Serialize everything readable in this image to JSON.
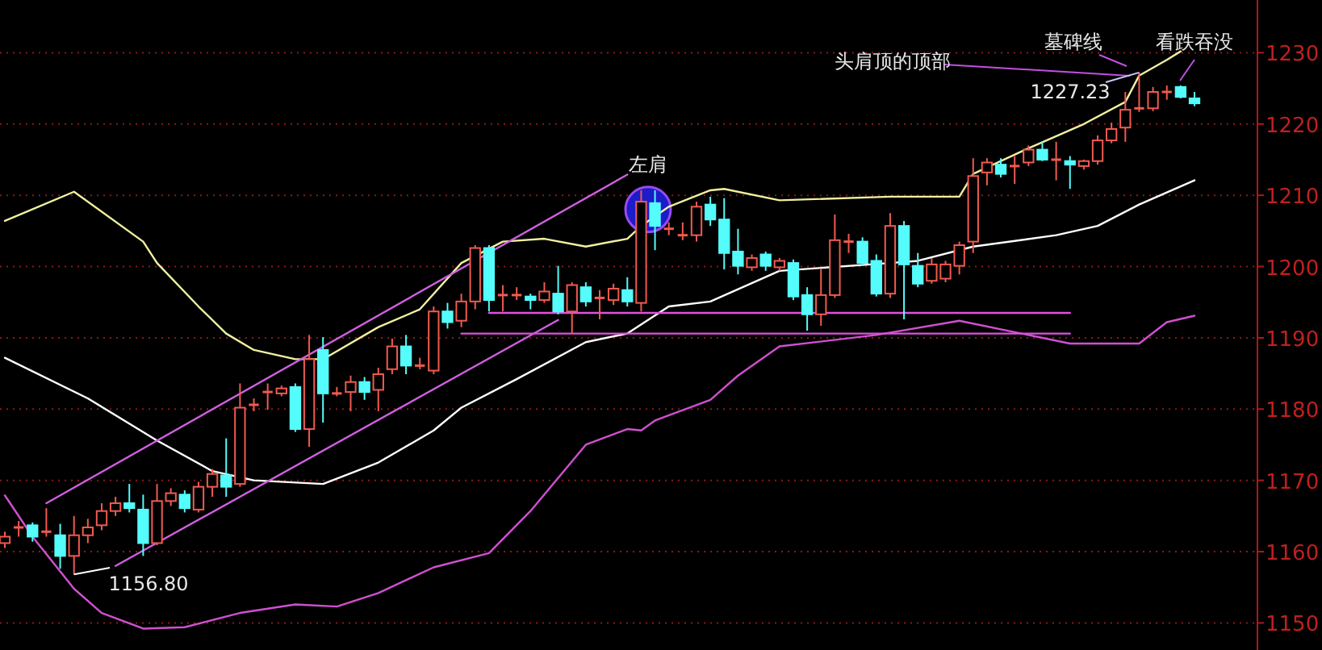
{
  "chart_data": {
    "type": "candlestick",
    "categories": [
      null,
      null,
      null,
      null,
      null,
      null,
      null,
      null,
      null,
      null,
      null,
      null,
      null,
      null,
      null,
      null,
      null,
      null,
      null,
      null,
      null,
      null,
      null,
      null,
      null,
      null,
      null,
      null,
      null,
      null,
      null,
      null,
      null,
      null,
      null,
      null,
      null,
      null,
      null,
      null,
      null,
      null,
      null,
      null,
      null,
      null,
      null,
      null,
      null,
      null,
      null,
      null,
      null,
      null,
      null,
      null,
      null,
      null,
      null,
      null,
      null,
      null,
      null,
      null,
      null,
      null,
      null,
      null,
      null,
      null,
      null,
      null,
      null,
      null,
      null,
      null,
      null,
      null,
      null,
      null,
      null,
      null,
      null,
      null,
      null,
      null,
      null
    ],
    "ohlc": [
      [
        1161.2,
        1162.8,
        1160.5,
        1162.1
      ],
      [
        1163.4,
        1164.3,
        1162.1,
        1163.4
      ],
      [
        1163.7,
        1164.1,
        1161.4,
        1162.1
      ],
      [
        1162.8,
        1166.1,
        1162.1,
        1162.8
      ],
      [
        1162.3,
        1163.9,
        1157.6,
        1159.4
      ],
      [
        1159.4,
        1165.0,
        1156.8,
        1162.3
      ],
      [
        1162.3,
        1164.6,
        1161.2,
        1163.4
      ],
      [
        1163.7,
        1166.8,
        1163.0,
        1165.7
      ],
      [
        1165.7,
        1167.7,
        1165.0,
        1166.8
      ],
      [
        1166.8,
        1169.5,
        1165.5,
        1166.1
      ],
      [
        1165.9,
        1168.0,
        1159.4,
        1161.2
      ],
      [
        1161.2,
        1169.5,
        1160.9,
        1167.1
      ],
      [
        1167.1,
        1168.9,
        1166.4,
        1168.2
      ],
      [
        1168.0,
        1168.6,
        1165.5,
        1166.1
      ],
      [
        1165.9,
        1169.8,
        1165.5,
        1169.1
      ],
      [
        1169.1,
        1171.6,
        1167.7,
        1170.9
      ],
      [
        1170.7,
        1175.9,
        1167.7,
        1169.1
      ],
      [
        1169.5,
        1183.6,
        1169.1,
        1180.2
      ],
      [
        1180.6,
        1181.5,
        1179.7,
        1180.6
      ],
      [
        1182.4,
        1183.6,
        1179.9,
        1182.4
      ],
      [
        1182.2,
        1183.3,
        1181.8,
        1182.9
      ],
      [
        1183.1,
        1183.6,
        1176.8,
        1177.2
      ],
      [
        1177.2,
        1190.4,
        1174.7,
        1187.0
      ],
      [
        1188.3,
        1190.1,
        1178.1,
        1182.2
      ],
      [
        1182.2,
        1183.1,
        1181.8,
        1182.2
      ],
      [
        1182.4,
        1184.7,
        1179.7,
        1183.8
      ],
      [
        1183.8,
        1184.5,
        1181.3,
        1182.4
      ],
      [
        1182.7,
        1185.8,
        1179.7,
        1184.9
      ],
      [
        1185.6,
        1189.9,
        1184.9,
        1188.8
      ],
      [
        1188.8,
        1190.4,
        1184.9,
        1186.1
      ],
      [
        1186.1,
        1187.2,
        1185.6,
        1186.1
      ],
      [
        1185.4,
        1194.4,
        1184.9,
        1193.7
      ],
      [
        1193.7,
        1194.9,
        1191.3,
        1192.2
      ],
      [
        1192.4,
        1196.2,
        1191.5,
        1195.1
      ],
      [
        1195.1,
        1203.0,
        1194.0,
        1202.6
      ],
      [
        1202.6,
        1203.0,
        1193.7,
        1195.3
      ],
      [
        1196.0,
        1197.4,
        1193.7,
        1196.0
      ],
      [
        1196.0,
        1197.1,
        1195.3,
        1196.0
      ],
      [
        1195.8,
        1196.2,
        1194.0,
        1195.3
      ],
      [
        1195.3,
        1197.8,
        1194.9,
        1196.5
      ],
      [
        1196.2,
        1200.1,
        1193.3,
        1193.7
      ],
      [
        1193.7,
        1197.8,
        1190.6,
        1197.4
      ],
      [
        1197.1,
        1197.8,
        1194.4,
        1195.1
      ],
      [
        1195.6,
        1196.7,
        1192.6,
        1195.6
      ],
      [
        1195.3,
        1197.6,
        1194.6,
        1196.9
      ],
      [
        1196.7,
        1198.5,
        1194.4,
        1195.1
      ],
      [
        1194.9,
        1210.7,
        1193.7,
        1209.1
      ],
      [
        1208.9,
        1210.7,
        1202.3,
        1205.7
      ],
      [
        1205.3,
        1206.2,
        1204.4,
        1205.3
      ],
      [
        1204.4,
        1206.2,
        1203.7,
        1204.4
      ],
      [
        1204.4,
        1209.1,
        1203.5,
        1208.4
      ],
      [
        1208.7,
        1209.8,
        1205.7,
        1206.6
      ],
      [
        1206.6,
        1209.6,
        1199.6,
        1201.9
      ],
      [
        1202.1,
        1205.3,
        1198.9,
        1200.1
      ],
      [
        1199.9,
        1201.7,
        1199.4,
        1201.2
      ],
      [
        1201.7,
        1202.1,
        1199.4,
        1200.1
      ],
      [
        1199.9,
        1201.2,
        1199.4,
        1200.8
      ],
      [
        1200.5,
        1201.0,
        1195.3,
        1195.8
      ],
      [
        1196.0,
        1197.1,
        1191.0,
        1193.3
      ],
      [
        1193.3,
        1199.6,
        1191.7,
        1196.0
      ],
      [
        1196.0,
        1207.3,
        1195.6,
        1203.7
      ],
      [
        1203.5,
        1204.6,
        1201.9,
        1203.5
      ],
      [
        1203.5,
        1204.1,
        1200.1,
        1200.5
      ],
      [
        1200.8,
        1201.7,
        1195.8,
        1196.2
      ],
      [
        1196.2,
        1207.5,
        1195.6,
        1205.7
      ],
      [
        1205.7,
        1206.4,
        1192.6,
        1200.3
      ],
      [
        1200.1,
        1201.9,
        1197.1,
        1197.6
      ],
      [
        1198.0,
        1201.2,
        1197.6,
        1200.3
      ],
      [
        1198.3,
        1200.8,
        1197.8,
        1200.3
      ],
      [
        1200.1,
        1203.5,
        1198.9,
        1203.0
      ],
      [
        1203.5,
        1215.2,
        1201.9,
        1212.7
      ],
      [
        1213.2,
        1215.2,
        1211.4,
        1214.6
      ],
      [
        1214.3,
        1215.2,
        1212.5,
        1213.0
      ],
      [
        1214.1,
        1215.5,
        1211.6,
        1214.1
      ],
      [
        1214.6,
        1217.0,
        1214.1,
        1216.4
      ],
      [
        1216.4,
        1217.5,
        1214.8,
        1215.0
      ],
      [
        1215.0,
        1217.5,
        1212.1,
        1215.0
      ],
      [
        1214.8,
        1215.5,
        1210.9,
        1214.3
      ],
      [
        1214.1,
        1215.0,
        1213.6,
        1214.8
      ],
      [
        1214.8,
        1218.4,
        1214.3,
        1217.7
      ],
      [
        1217.7,
        1220.2,
        1217.3,
        1219.3
      ],
      [
        1219.5,
        1224.5,
        1217.5,
        1222.0
      ],
      [
        1222.2,
        1227.23,
        1221.7,
        1222.2
      ],
      [
        1222.2,
        1225.2,
        1221.8,
        1224.5
      ],
      [
        1224.5,
        1225.4,
        1223.4,
        1224.5
      ],
      [
        1225.2,
        1225.4,
        1223.6,
        1223.8
      ],
      [
        1223.6,
        1224.5,
        1222.5,
        1222.9
      ]
    ],
    "series": [
      {
        "type": "line",
        "color": "#f0f0a0",
        "values": [
          1206.4,
          null,
          null,
          null,
          null,
          1210.5,
          null,
          null,
          null,
          null,
          1203.5,
          1200.5,
          null,
          null,
          1194.4,
          null,
          1190.6,
          null,
          1188.3,
          null,
          null,
          1187.0,
          null,
          1187.0,
          null,
          null,
          null,
          1191.5,
          null,
          null,
          1194.0,
          null,
          null,
          1200.5,
          null,
          null,
          1203.5,
          null,
          null,
          1203.9,
          null,
          null,
          1202.8,
          null,
          null,
          1203.9,
          1205.7,
          null,
          1208.4,
          null,
          null,
          1210.7,
          1210.9,
          null,
          null,
          null,
          1209.3,
          null,
          null,
          null,
          null,
          null,
          null,
          null,
          1209.8,
          null,
          null,
          null,
          null,
          1209.8,
          1213.0,
          null,
          null,
          null,
          1216.6,
          null,
          null,
          null,
          1220.0,
          null,
          null,
          1223.1,
          1226.8,
          null,
          1229.0,
          1230.2,
          null
        ]
      },
      {
        "type": "line",
        "color": "#ffffff",
        "values": [
          1187.2,
          null,
          null,
          null,
          null,
          null,
          1181.5,
          null,
          null,
          null,
          null,
          1175.6,
          null,
          null,
          null,
          1171.3,
          null,
          null,
          1170.0,
          null,
          null,
          null,
          null,
          1169.5,
          null,
          null,
          null,
          1172.5,
          null,
          null,
          null,
          1177.0,
          null,
          1180.2,
          null,
          null,
          null,
          1184.2,
          null,
          null,
          null,
          null,
          1189.4,
          null,
          null,
          1190.6,
          null,
          null,
          1194.4,
          null,
          null,
          1195.1,
          null,
          null,
          null,
          null,
          1199.4,
          null,
          null,
          null,
          null,
          null,
          null,
          null,
          1200.5,
          null,
          1200.8,
          null,
          null,
          null,
          1202.8,
          null,
          null,
          null,
          null,
          null,
          1204.4,
          null,
          null,
          1205.7,
          null,
          null,
          1208.7,
          null,
          null,
          null,
          1212.1
        ]
      },
      {
        "type": "line",
        "color": "#d050d0",
        "values": [
          1167.9,
          null,
          1162.1,
          null,
          null,
          1154.8,
          null,
          1151.4,
          null,
          null,
          1149.2,
          null,
          null,
          1149.4,
          null,
          null,
          null,
          1151.4,
          null,
          null,
          null,
          1152.6,
          null,
          null,
          1152.3,
          null,
          null,
          1154.2,
          null,
          null,
          null,
          1157.8,
          null,
          null,
          null,
          1159.8,
          null,
          null,
          1165.7,
          null,
          null,
          null,
          1175.0,
          null,
          null,
          1177.2,
          1177.0,
          1178.4,
          null,
          null,
          null,
          1181.3,
          null,
          1184.7,
          null,
          null,
          1188.8,
          null,
          null,
          null,
          null,
          null,
          null,
          1190.4,
          null,
          null,
          null,
          null,
          null,
          1192.4,
          null,
          null,
          null,
          1190.8,
          null,
          null,
          null,
          1189.2,
          null,
          null,
          null,
          null,
          1189.2,
          null,
          1192.2,
          null,
          1193.1
        ]
      },
      {
        "type": "line",
        "color": "#d060e0",
        "values": [
          null,
          null,
          null,
          1166.8,
          null,
          null,
          null,
          null,
          null,
          null,
          null,
          null,
          null,
          null,
          null,
          null,
          null,
          null,
          null,
          null,
          null,
          null,
          null,
          null,
          null,
          null,
          null,
          null,
          null,
          null,
          null,
          null,
          null,
          null,
          null,
          null,
          null,
          null,
          null,
          null,
          null,
          null,
          null,
          null,
          null,
          1212.9,
          null,
          null,
          null,
          null,
          null,
          null,
          null,
          null,
          null,
          null,
          null,
          null,
          null,
          null,
          null,
          null,
          null,
          null,
          null,
          null,
          null,
          null,
          null,
          null,
          null,
          null,
          null,
          null,
          null,
          null,
          null,
          null,
          null,
          null,
          null,
          null,
          null,
          null,
          null,
          null,
          null
        ]
      },
      {
        "type": "line",
        "color": "#d060e0",
        "values": [
          null,
          null,
          null,
          null,
          null,
          null,
          null,
          null,
          1158.0,
          null,
          null,
          null,
          null,
          null,
          null,
          null,
          null,
          null,
          null,
          null,
          null,
          null,
          null,
          null,
          null,
          null,
          null,
          null,
          null,
          null,
          null,
          null,
          null,
          null,
          null,
          null,
          null,
          null,
          null,
          null,
          1192.5,
          null,
          null,
          null,
          null,
          null,
          null,
          null,
          null,
          null,
          null,
          null,
          null,
          null,
          null,
          null,
          null,
          null,
          null,
          null,
          null,
          null,
          null,
          null,
          null,
          null,
          null,
          null,
          null,
          null,
          null,
          null,
          null,
          null,
          null,
          null,
          null,
          null,
          null,
          null,
          null,
          null,
          null,
          null,
          null,
          null,
          null
        ]
      },
      {
        "type": "line",
        "color": "#e050e0",
        "values": [
          null,
          null,
          null,
          null,
          null,
          null,
          null,
          null,
          null,
          null,
          null,
          null,
          null,
          null,
          null,
          null,
          null,
          null,
          null,
          null,
          null,
          null,
          null,
          null,
          null,
          null,
          null,
          null,
          null,
          null,
          null,
          null,
          null,
          null,
          null,
          1193.5,
          null,
          null,
          null,
          null,
          null,
          null,
          null,
          null,
          null,
          null,
          null,
          null,
          null,
          null,
          null,
          null,
          null,
          null,
          null,
          null,
          null,
          null,
          null,
          null,
          null,
          null,
          null,
          null,
          null,
          null,
          null,
          null,
          null,
          null,
          null,
          null,
          null,
          null,
          null,
          null,
          null,
          1193.5,
          null,
          null,
          null,
          null,
          null,
          null,
          null,
          null,
          null
        ]
      },
      {
        "type": "line",
        "color": "#e050e0",
        "values": [
          null,
          null,
          null,
          null,
          null,
          null,
          null,
          null,
          null,
          null,
          null,
          null,
          null,
          null,
          null,
          null,
          null,
          null,
          null,
          null,
          null,
          null,
          null,
          null,
          null,
          null,
          null,
          null,
          null,
          null,
          null,
          null,
          null,
          1190.6,
          null,
          null,
          null,
          null,
          null,
          null,
          null,
          null,
          null,
          null,
          null,
          null,
          null,
          null,
          null,
          null,
          null,
          null,
          null,
          null,
          null,
          null,
          null,
          null,
          null,
          null,
          null,
          null,
          null,
          null,
          null,
          null,
          null,
          null,
          null,
          null,
          null,
          null,
          null,
          null,
          null,
          null,
          null,
          1190.6,
          null,
          null,
          null,
          null,
          null,
          null,
          null,
          null,
          null
        ]
      }
    ],
    "ylim": [
      1146.2,
      1237.4
    ],
    "yticks": [
      1150,
      1160,
      1170,
      1180,
      1190,
      1200,
      1210,
      1220,
      1230
    ],
    "grid": "y",
    "tick_labels": "y",
    "annotations": [
      "左肩",
      "头肩顶的顶部",
      "墓碑线",
      "看跌吞没",
      "1227.23",
      "1156.80"
    ]
  }
}
